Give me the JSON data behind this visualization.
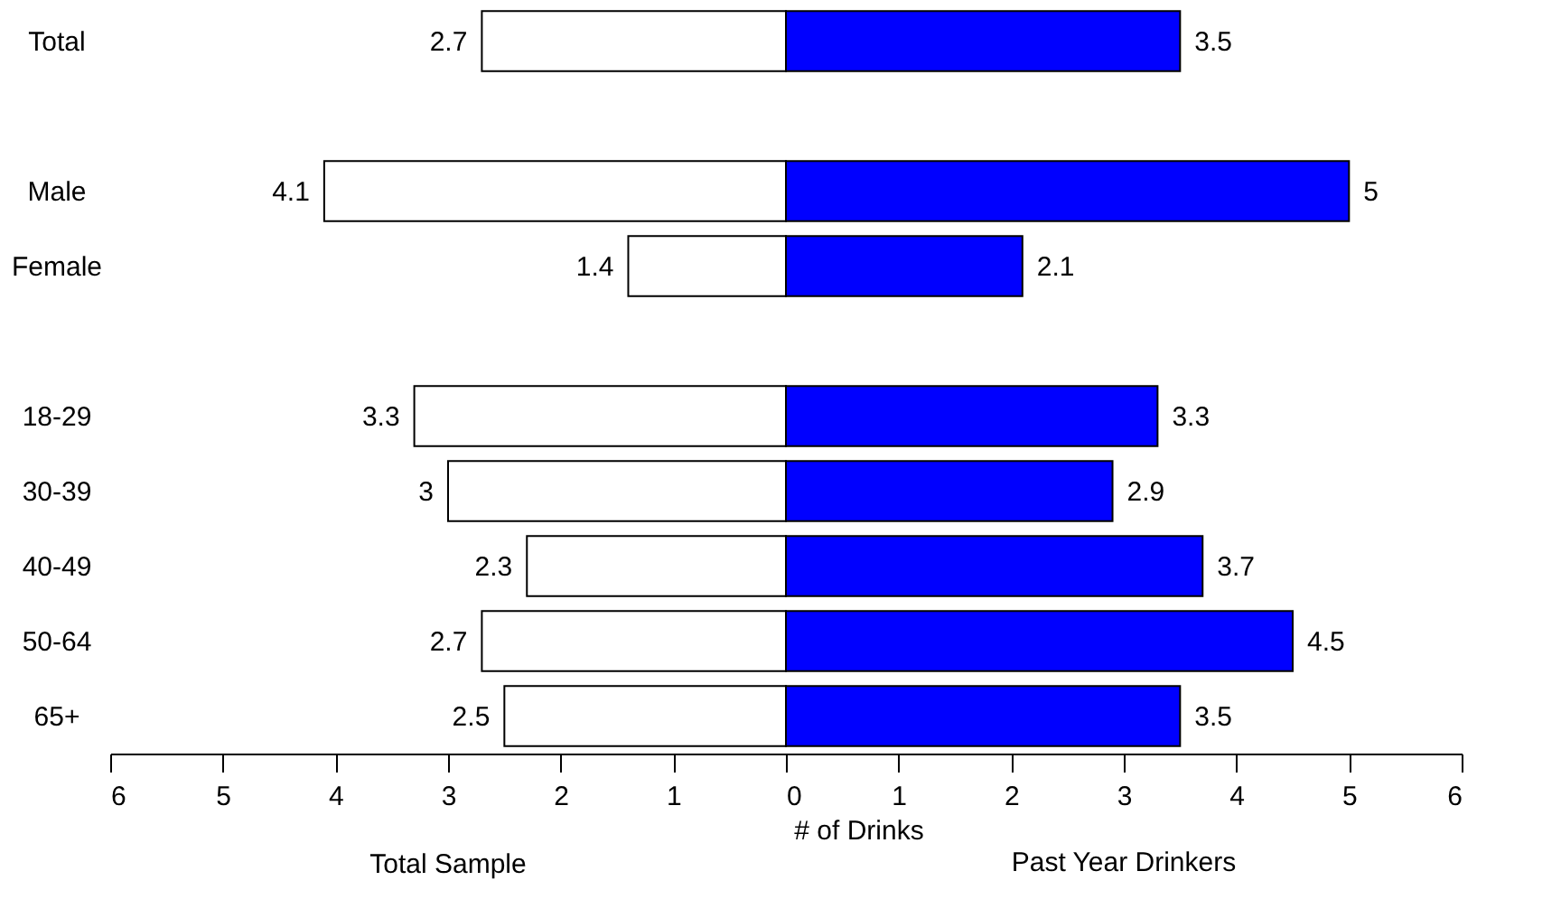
{
  "chart_data": [
    {
      "type": "bar",
      "orientation": "horizontal",
      "title": "Total Sample",
      "xlabel": "# of Drinks",
      "categories": [
        "Total",
        null,
        "Male",
        "Female",
        null,
        "18-29",
        "30-39",
        "40-49",
        "50-64",
        "65+"
      ],
      "series": [
        {
          "color": "#ffffff",
          "values": [
            2.7,
            null,
            4.1,
            1.4,
            null,
            3.3,
            3,
            2.3,
            2.7,
            2.5
          ]
        }
      ],
      "data_labels": true,
      "xlim": [
        6,
        0
      ],
      "xticks": [
        6,
        5,
        4,
        3,
        2,
        1,
        {
          "value": 0,
          "label": null
        }
      ],
      "grid": false
    },
    {
      "type": "bar",
      "orientation": "horizontal",
      "title": "Past Year Drinkers",
      "categories": [
        null,
        null,
        null,
        null,
        null,
        null,
        null,
        null,
        null,
        null
      ],
      "series": [
        {
          "color": "#0000ff",
          "values": [
            3.5,
            null,
            5,
            2.1,
            null,
            3.3,
            2.9,
            3.7,
            4.5,
            3.5
          ]
        }
      ],
      "data_labels": true,
      "xlim": [
        0,
        6
      ],
      "xticks": [
        0,
        1,
        2,
        3,
        4,
        5,
        6
      ],
      "grid": false
    }
  ]
}
